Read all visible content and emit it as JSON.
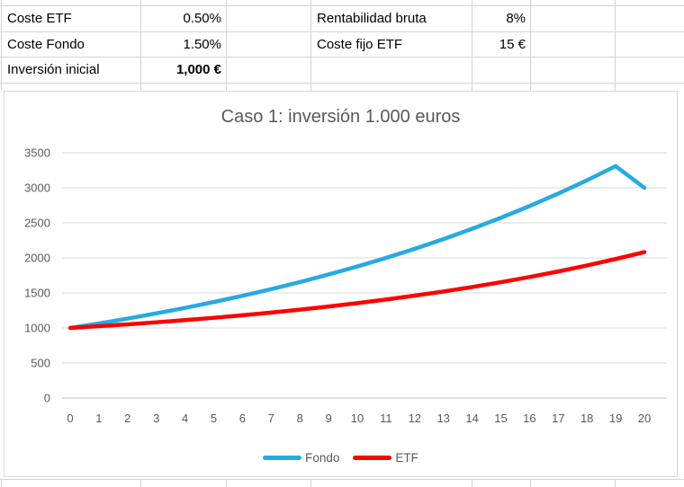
{
  "table": {
    "a1": "Coste ETF",
    "b1": "0.50%",
    "d1": "Rentabilidad bruta",
    "e1": "8%",
    "a2": "Coste Fondo",
    "b2": "1.50%",
    "d2": "Coste fijo ETF",
    "e2": "15 €",
    "a3": "Inversión inicial",
    "b3": "1,000 €"
  },
  "chart_data": {
    "type": "line",
    "title": "Caso 1: inversión 1.000 euros",
    "xlabel": "",
    "ylabel": "",
    "x": [
      0,
      1,
      2,
      3,
      4,
      5,
      6,
      7,
      8,
      9,
      10,
      11,
      12,
      13,
      14,
      15,
      16,
      17,
      18,
      19,
      20
    ],
    "ylim": [
      0,
      3500
    ],
    "ytick_step": 500,
    "grid": "horizontal",
    "legend_position": "bottom",
    "grid_color": "#d9d9d9",
    "axis_line_color": "#bfbfbf",
    "tick_text_color": "#595959",
    "series": [
      {
        "name": "Fondo",
        "color": "#27aae1",
        "values": [
          1000,
          1065,
          1134,
          1208,
          1286,
          1370,
          1459,
          1554,
          1655,
          1763,
          1877,
          1999,
          2129,
          2267,
          2415,
          2572,
          2739,
          2917,
          3107,
          3309,
          3000
        ]
      },
      {
        "name": "ETF",
        "color": "#fe0000",
        "values": [
          1000,
          1025,
          1052,
          1081,
          1112,
          1145,
          1181,
          1220,
          1261,
          1306,
          1354,
          1406,
          1461,
          1520,
          1584,
          1653,
          1727,
          1806,
          1892,
          1984,
          2083
        ]
      }
    ]
  }
}
